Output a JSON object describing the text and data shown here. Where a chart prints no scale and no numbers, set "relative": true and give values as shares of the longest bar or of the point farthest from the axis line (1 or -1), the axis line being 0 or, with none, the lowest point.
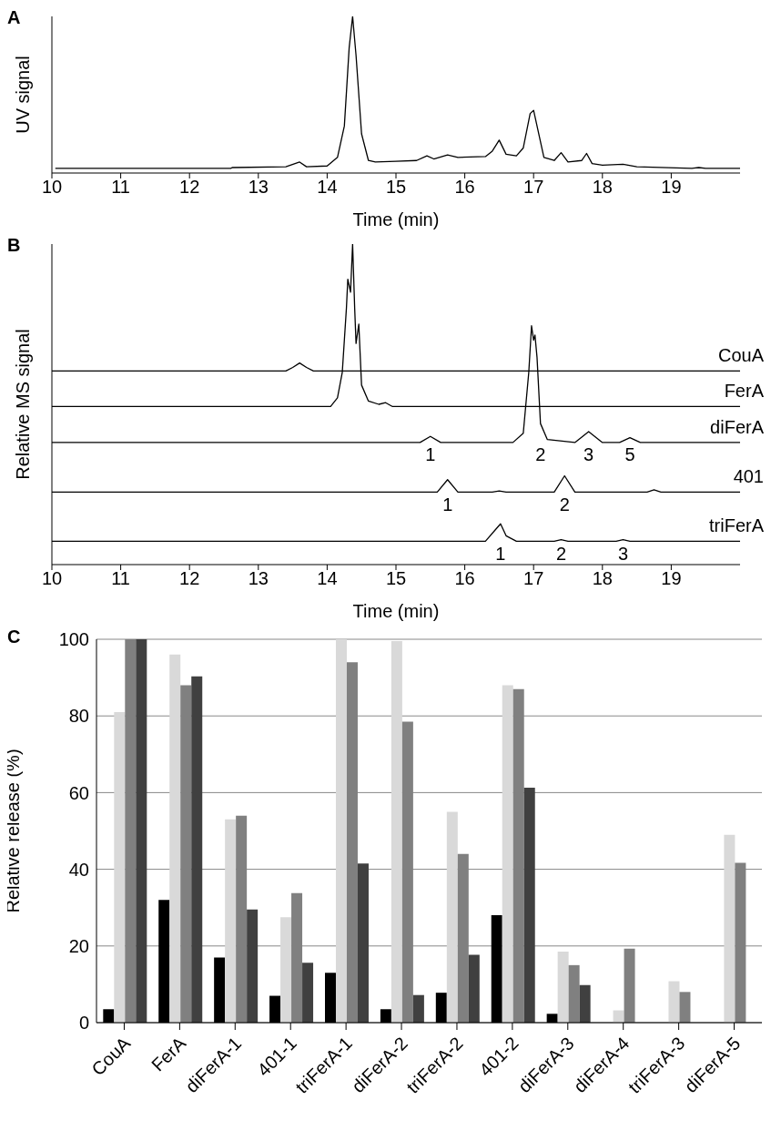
{
  "chart_data": [
    {
      "type": "line",
      "title": "A",
      "xlabel": "Time (min)",
      "ylabel": "UV signal",
      "relative": true,
      "xlim": [
        10,
        20
      ],
      "xticks": [
        10,
        11,
        12,
        13,
        14,
        15,
        16,
        17,
        18,
        19
      ],
      "grid": false,
      "series": [
        {
          "color": "#000000",
          "x": [
            10.05,
            12.6,
            12.62,
            13.4,
            13.6,
            13.7,
            14.0,
            14.15,
            14.25,
            14.32,
            14.37,
            14.42,
            14.5,
            14.6,
            14.7,
            15.0,
            15.3,
            15.45,
            15.55,
            15.75,
            15.9,
            16.3,
            16.4,
            16.5,
            16.6,
            16.75,
            16.85,
            16.95,
            17.0,
            17.05,
            17.15,
            17.3,
            17.4,
            17.5,
            17.7,
            17.77,
            17.85,
            18.0,
            18.3,
            18.5,
            19.3,
            19.4,
            19.5,
            20
          ],
          "values": [
            0.03,
            0.03,
            0.035,
            0.04,
            0.07,
            0.04,
            0.045,
            0.1,
            0.3,
            0.8,
            1,
            0.75,
            0.25,
            0.08,
            0.07,
            0.075,
            0.08,
            0.11,
            0.09,
            0.115,
            0.1,
            0.105,
            0.14,
            0.21,
            0.12,
            0.11,
            0.16,
            0.38,
            0.4,
            0.3,
            0.1,
            0.08,
            0.13,
            0.07,
            0.08,
            0.125,
            0.06,
            0.05,
            0.056,
            0.04,
            0.03,
            0.035,
            0.03,
            0.03
          ]
        }
      ]
    },
    {
      "type": "line",
      "title": "B",
      "xlabel": "Time (min)",
      "ylabel": "Relative MS signal",
      "relative": true,
      "xlim": [
        10,
        20
      ],
      "xticks": [
        10,
        11,
        12,
        13,
        14,
        15,
        16,
        17,
        18,
        19
      ],
      "grid": false,
      "series": [
        {
          "name": "CouA",
          "color": "#000000",
          "x": [
            10,
            13.4,
            13.5,
            13.6,
            13.7,
            13.8,
            20
          ],
          "values": [
            0.604,
            0.604,
            0.615,
            0.629,
            0.615,
            0.604,
            0.604
          ]
        },
        {
          "name": "FerA",
          "color": "#000000",
          "x": [
            10,
            14.05,
            14.15,
            14.22,
            14.28,
            14.3,
            14.34,
            14.37,
            14.4,
            14.42,
            14.46,
            14.5,
            14.6,
            14.75,
            14.85,
            14.95,
            20
          ],
          "values": [
            0.493,
            0.493,
            0.52,
            0.6,
            0.8,
            0.89,
            0.85,
            1,
            0.8,
            0.69,
            0.75,
            0.56,
            0.51,
            0.5,
            0.505,
            0.493,
            0.493
          ]
        },
        {
          "name": "diFerA",
          "color": "#000000",
          "x": [
            10,
            15.35,
            15.5,
            15.65,
            16.7,
            16.85,
            16.93,
            16.97,
            17.0,
            17.02,
            17.05,
            17.1,
            17.2,
            17.6,
            17.8,
            18.0,
            18.25,
            18.4,
            18.55,
            20
          ],
          "values": [
            0.381,
            0.381,
            0.4,
            0.381,
            0.381,
            0.41,
            0.6,
            0.745,
            0.7,
            0.716,
            0.646,
            0.44,
            0.39,
            0.381,
            0.415,
            0.381,
            0.381,
            0.396,
            0.381,
            0.381
          ]
        },
        {
          "name": "401",
          "color": "#000000",
          "x": [
            10,
            15.6,
            15.75,
            15.9,
            16.4,
            16.5,
            16.6,
            17.3,
            17.45,
            17.6,
            18.65,
            18.75,
            18.85,
            20
          ],
          "values": [
            0.226,
            0.226,
            0.265,
            0.226,
            0.226,
            0.23,
            0.226,
            0.226,
            0.277,
            0.226,
            0.226,
            0.233,
            0.226,
            0.226
          ]
        },
        {
          "name": "triFerA",
          "color": "#000000",
          "x": [
            10,
            16.3,
            16.45,
            16.52,
            16.6,
            16.75,
            17.3,
            17.4,
            17.5,
            18.2,
            18.3,
            18.4,
            20
          ],
          "values": [
            0.073,
            0.073,
            0.11,
            0.127,
            0.09,
            0.073,
            0.073,
            0.078,
            0.073,
            0.073,
            0.078,
            0.073,
            0.073
          ]
        }
      ],
      "annotations": [
        {
          "text": "1",
          "x": 15.5,
          "y": 0.4
        },
        {
          "text": "2",
          "x": 17.1,
          "y": 0.44
        },
        {
          "text": "3",
          "x": 17.8,
          "y": 0.415
        },
        {
          "text": "5",
          "x": 18.4,
          "y": 0.396
        },
        {
          "text": "1",
          "x": 15.75,
          "y": 0.265
        },
        {
          "text": "2",
          "x": 17.45,
          "y": 0.277
        },
        {
          "text": "1",
          "x": 16.52,
          "y": 0.127
        },
        {
          "text": "2",
          "x": 17.4,
          "y": 0.078
        },
        {
          "text": "3",
          "x": 18.3,
          "y": 0.078
        }
      ]
    },
    {
      "type": "bar",
      "title": "C",
      "ylabel": "Relative release (%)",
      "ylim": [
        0,
        100
      ],
      "yticks": [
        0,
        20,
        40,
        60,
        80,
        100
      ],
      "grid": "y",
      "categories": [
        "CouA",
        "FerA",
        "diFerA-1",
        "401-1",
        "triFerA-1",
        "diFerA-2",
        "triFerA-2",
        "401-2",
        "diFerA-3",
        "diFerA-4",
        "triFerA-3",
        "diFerA-5"
      ],
      "series": [
        {
          "color": "#000000",
          "values": [
            3.5,
            32,
            17,
            7,
            13,
            3.5,
            7.8,
            28,
            2.3,
            null,
            null,
            null
          ]
        },
        {
          "color": "#d9d9d9",
          "values": [
            81,
            96,
            53,
            27.5,
            100,
            99.5,
            55,
            88,
            18.5,
            3.2,
            10.8,
            49
          ]
        },
        {
          "color": "#808080",
          "values": [
            100,
            88,
            54,
            33.8,
            94,
            78.5,
            44,
            87,
            15,
            19.3,
            8,
            41.7
          ]
        },
        {
          "color": "#404040",
          "values": [
            100,
            90.3,
            29.5,
            15.6,
            41.5,
            7.2,
            17.7,
            61.3,
            9.8,
            null,
            null,
            null
          ]
        }
      ]
    }
  ]
}
